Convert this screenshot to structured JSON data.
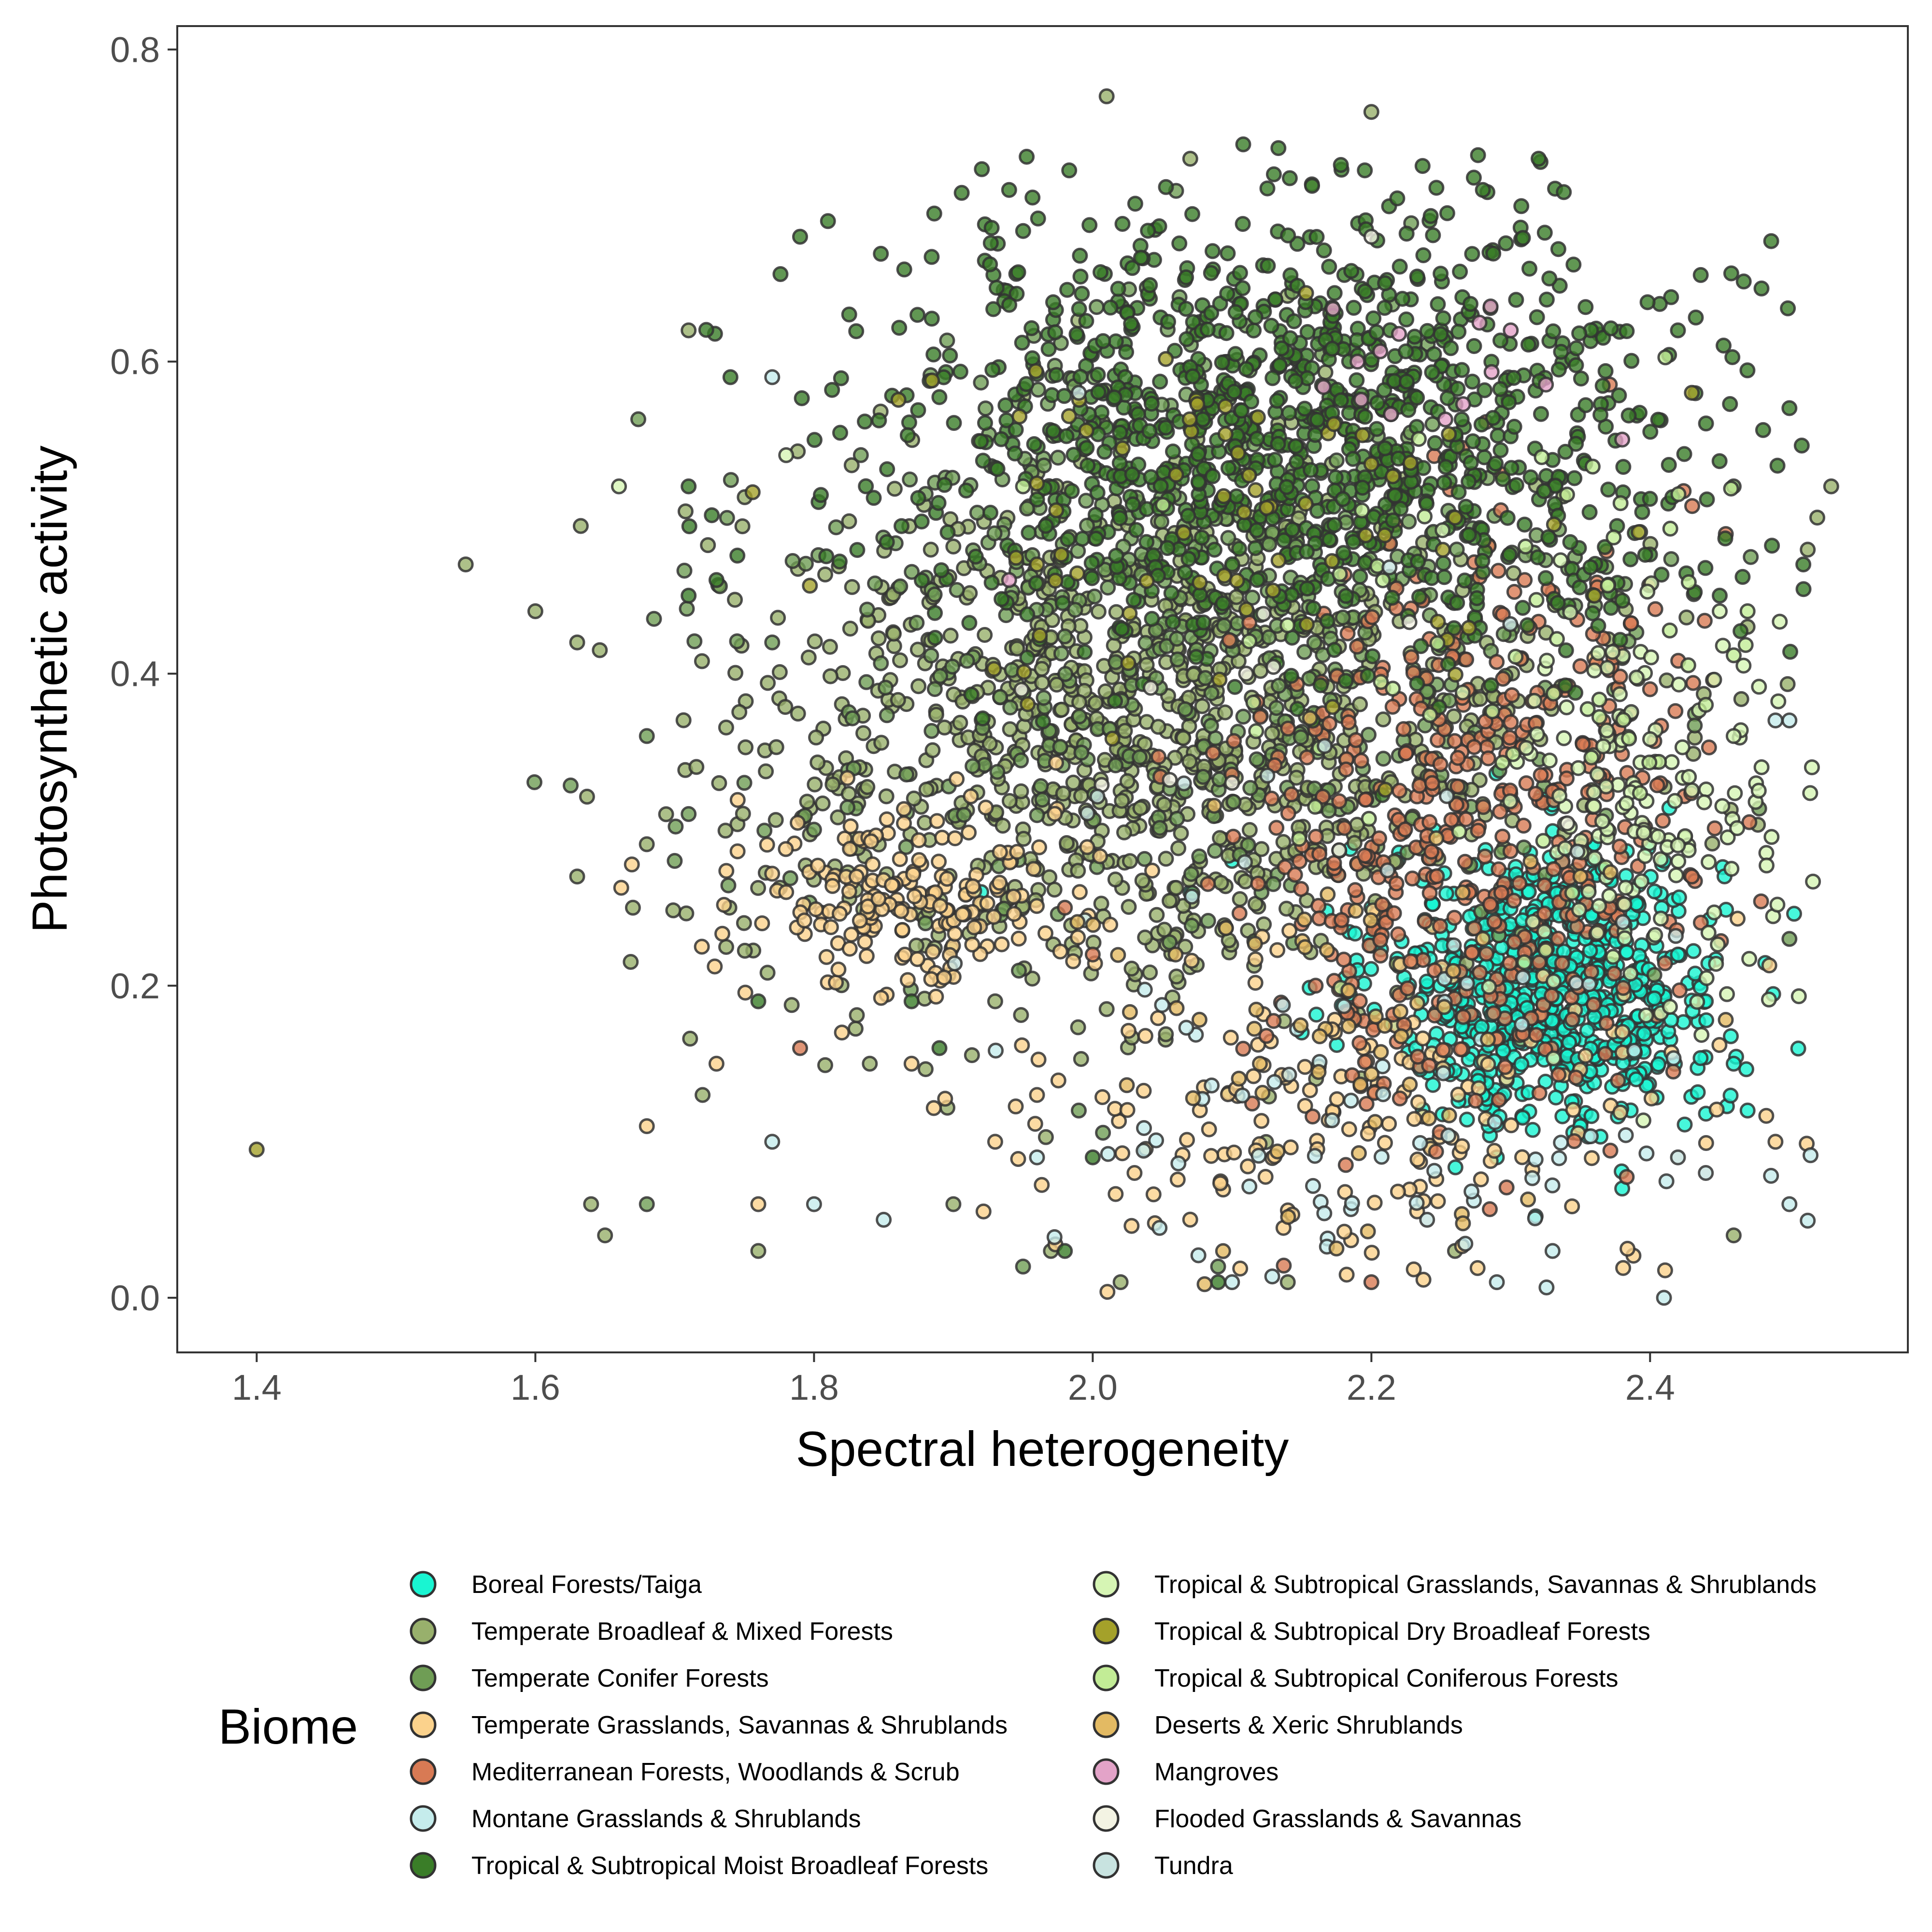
{
  "chart_data": {
    "type": "scatter",
    "title": "",
    "xlabel": "Spectral heterogeneity",
    "ylabel": "Photosynthetic activity",
    "xlim": [
      1.343,
      2.585
    ],
    "ylim": [
      -0.035,
      0.815
    ],
    "x_ticks": [
      {
        "value": 1.4,
        "label": "1.4"
      },
      {
        "value": 1.6,
        "label": "1.6"
      },
      {
        "value": 1.8,
        "label": "1.8"
      },
      {
        "value": 2.0,
        "label": "2.0"
      },
      {
        "value": 2.2,
        "label": "2.2"
      },
      {
        "value": 2.4,
        "label": "2.4"
      }
    ],
    "y_ticks": [
      {
        "value": 0.0,
        "label": "0.0"
      },
      {
        "value": 0.2,
        "label": "0.2"
      },
      {
        "value": 0.4,
        "label": "0.4"
      },
      {
        "value": 0.6,
        "label": "0.6"
      },
      {
        "value": 0.8,
        "label": "0.8"
      }
    ],
    "grid": false,
    "legend": {
      "title": "Biome",
      "position": "bottom",
      "columns": 2
    },
    "point_style": {
      "stroke": "#333333",
      "opacity": 0.8
    },
    "series": [
      {
        "name": "Boreal Forests/Taiga",
        "color": "#19f5d2",
        "centroids": [
          {
            "x": 2.33,
            "y": 0.2,
            "sx": 0.06,
            "sy": 0.045
          }
        ],
        "points": [
          [
            2.07,
            0.26
          ],
          [
            2.36,
            0.18
          ],
          [
            2.42,
            0.22
          ],
          [
            2.2,
            0.25
          ],
          [
            2.29,
            0.09
          ],
          [
            2.39,
            0.14
          ],
          [
            2.1,
            0.28
          ],
          [
            2.46,
            0.15
          ],
          [
            2.32,
            0.24
          ],
          [
            2.15,
            0.17
          ],
          [
            2.47,
            0.12
          ],
          [
            2.38,
            0.07
          ],
          [
            2.41,
            0.28
          ],
          [
            1.92,
            0.26
          ],
          [
            2.25,
            0.21
          ],
          [
            2.44,
            0.19
          ],
          [
            2.28,
            0.13
          ],
          [
            2.33,
            0.27
          ],
          [
            2.19,
            0.21
          ],
          [
            2.35,
            0.11
          ]
        ]
      },
      {
        "name": "Temperate Broadleaf & Mixed Forests",
        "color": "#98b06c",
        "centroids": [
          {
            "x": 2.04,
            "y": 0.36,
            "sx": 0.15,
            "sy": 0.085
          }
        ],
        "points": [
          [
            1.55,
            0.47
          ],
          [
            1.6,
            0.44
          ],
          [
            1.63,
            0.42
          ],
          [
            1.63,
            0.27
          ],
          [
            1.64,
            0.06
          ],
          [
            1.65,
            0.04
          ],
          [
            1.67,
            0.25
          ],
          [
            1.71,
            0.62
          ],
          [
            1.72,
            0.13
          ],
          [
            1.76,
            0.03
          ],
          [
            2.01,
            0.77
          ],
          [
            2.2,
            0.76
          ],
          [
            2.07,
            0.73
          ],
          [
            2.53,
            0.52
          ],
          [
            2.52,
            0.5
          ],
          [
            2.46,
            0.04
          ],
          [
            1.97,
            0.03
          ],
          [
            2.02,
            0.01
          ],
          [
            1.84,
            0.15
          ],
          [
            1.9,
            0.06
          ],
          [
            2.14,
            0.01
          ],
          [
            2.26,
            0.03
          ],
          [
            1.93,
            0.19
          ],
          [
            2.47,
            0.43
          ]
        ]
      },
      {
        "name": "Temperate Conifer Forests",
        "color": "#6f9d55",
        "centroids": [
          {
            "x": 2.08,
            "y": 0.43,
            "sx": 0.15,
            "sy": 0.1
          }
        ],
        "points": [
          [
            1.68,
            0.36
          ],
          [
            1.7,
            0.28
          ],
          [
            1.71,
            0.31
          ],
          [
            1.75,
            0.33
          ],
          [
            1.77,
            0.42
          ],
          [
            1.68,
            0.06
          ],
          [
            1.95,
            0.02
          ],
          [
            2.5,
            0.23
          ],
          [
            2.46,
            0.52
          ],
          [
            2.38,
            0.41
          ],
          [
            1.8,
            0.3
          ],
          [
            1.88,
            0.24
          ],
          [
            1.99,
            0.12
          ],
          [
            2.09,
            0.02
          ]
        ]
      },
      {
        "name": "Temperate Grasslands, Savannas & Shrublands",
        "color": "#fbd28c",
        "centroids": [
          {
            "x": 2.2,
            "y": 0.12,
            "sx": 0.12,
            "sy": 0.06
          },
          {
            "x": 1.86,
            "y": 0.26,
            "sx": 0.06,
            "sy": 0.03
          }
        ],
        "points": [
          [
            1.73,
            0.15
          ],
          [
            1.76,
            0.06
          ],
          [
            1.78,
            0.26
          ],
          [
            1.82,
            0.17
          ],
          [
            1.87,
            0.15
          ],
          [
            1.93,
            0.1
          ],
          [
            1.96,
            0.13
          ],
          [
            2.03,
            0.08
          ],
          [
            2.49,
            0.1
          ],
          [
            1.68,
            0.11
          ],
          [
            2.36,
            0.41
          ]
        ]
      },
      {
        "name": "Mediterranean Forests, Woodlands & Scrub",
        "color": "#d87a54",
        "centroids": [
          {
            "x": 2.27,
            "y": 0.3,
            "sx": 0.08,
            "sy": 0.095
          }
        ],
        "points": [
          [
            1.79,
            0.16
          ],
          [
            2.0,
            0.22
          ],
          [
            2.2,
            0.01
          ],
          [
            2.43,
            0.27
          ],
          [
            2.4,
            0.39
          ],
          [
            1.98,
            0.25
          ],
          [
            2.31,
            0.46
          ],
          [
            2.16,
            0.2
          ]
        ]
      },
      {
        "name": "Montane Grasslands & Shrublands",
        "color": "#c5ecec",
        "centroids": [
          {
            "x": 2.23,
            "y": 0.1,
            "sx": 0.12,
            "sy": 0.07
          }
        ],
        "points": [
          [
            1.77,
            0.1
          ],
          [
            1.8,
            0.06
          ],
          [
            1.85,
            0.05
          ],
          [
            1.77,
            0.59
          ],
          [
            2.41,
            0.0
          ],
          [
            2.29,
            0.01
          ],
          [
            2.33,
            0.03
          ],
          [
            2.5,
            0.06
          ],
          [
            2.5,
            0.37
          ],
          [
            2.49,
            0.37
          ],
          [
            2.1,
            0.01
          ],
          [
            1.96,
            0.09
          ]
        ]
      },
      {
        "name": "Tropical & Subtropical Moist Broadleaf Forests",
        "color": "#3a7d28",
        "centroids": [
          {
            "x": 2.15,
            "y": 0.56,
            "sx": 0.15,
            "sy": 0.07
          }
        ],
        "points": [
          [
            1.71,
            0.52
          ],
          [
            1.71,
            0.45
          ],
          [
            1.73,
            0.46
          ],
          [
            1.74,
            0.59
          ],
          [
            1.79,
            0.68
          ],
          [
            1.81,
            0.69
          ],
          [
            1.87,
            0.19
          ],
          [
            1.76,
            0.19
          ],
          [
            1.89,
            0.16
          ],
          [
            2.32,
            0.73
          ],
          [
            2.42,
            0.62
          ],
          [
            2.51,
            0.47
          ],
          [
            2.45,
            0.45
          ],
          [
            2.0,
            0.09
          ],
          [
            2.09,
            0.01
          ],
          [
            1.98,
            0.03
          ],
          [
            1.94,
            0.71
          ],
          [
            2.13,
            0.72
          ],
          [
            2.28,
            0.71
          ]
        ]
      },
      {
        "name": "Tropical & Subtropical Grasslands, Savannas & Shrublands",
        "color": "#d6f5b4",
        "centroids": [
          {
            "x": 2.4,
            "y": 0.32,
            "sx": 0.05,
            "sy": 0.07
          }
        ],
        "points": [
          [
            1.66,
            0.52
          ],
          [
            1.78,
            0.54
          ],
          [
            2.46,
            0.36
          ],
          [
            2.48,
            0.34
          ],
          [
            2.42,
            0.29
          ],
          [
            2.45,
            0.44
          ]
        ]
      },
      {
        "name": "Tropical & Subtropical Dry Broadleaf Forests",
        "color": "#a4a12a",
        "centroids": [
          {
            "x": 2.1,
            "y": 0.47,
            "sx": 0.12,
            "sy": 0.07
          }
        ],
        "points": [
          [
            1.4,
            0.095
          ],
          [
            2.43,
            0.58
          ],
          [
            2.36,
            0.45
          ],
          [
            1.96,
            0.47
          ],
          [
            2.26,
            0.5
          ]
        ]
      },
      {
        "name": "Tropical & Subtropical Coniferous Forests",
        "color": "#c2ec96",
        "centroids": [
          {
            "x": 2.3,
            "y": 0.4,
            "sx": 0.1,
            "sy": 0.1
          }
        ],
        "points": [
          [
            2.47,
            0.44
          ],
          [
            2.44,
            0.38
          ],
          [
            1.95,
            0.52
          ]
        ]
      },
      {
        "name": "Deserts & Xeric Shrublands",
        "color": "#e3ba63",
        "centroids": [
          {
            "x": 2.17,
            "y": 0.17,
            "sx": 0.1,
            "sy": 0.07
          }
        ],
        "points": [
          [
            2.28,
            0.23
          ],
          [
            2.12,
            0.15
          ],
          [
            2.35,
            0.27
          ]
        ]
      },
      {
        "name": "Mangroves",
        "color": "#e3a3c8",
        "centroids": [
          {
            "x": 2.26,
            "y": 0.58,
            "sx": 0.07,
            "sy": 0.04
          }
        ],
        "points": [
          [
            2.3,
            0.62
          ],
          [
            2.19,
            0.6
          ],
          [
            2.38,
            0.55
          ],
          [
            1.94,
            0.46
          ]
        ]
      },
      {
        "name": "Flooded Grasslands & Savannas",
        "color": "#f3f3e3",
        "centroids": [
          {
            "x": 2.15,
            "y": 0.4,
            "sx": 0.12,
            "sy": 0.08
          }
        ],
        "points": [
          [
            2.2,
            0.68
          ],
          [
            2.1,
            0.33
          ]
        ]
      },
      {
        "name": "Tundra",
        "color": "#c8e3e0",
        "centroids": [
          {
            "x": 2.2,
            "y": 0.3,
            "sx": 0.12,
            "sy": 0.1
          }
        ],
        "points": [
          [
            2.42,
            0.09
          ],
          [
            2.44,
            0.08
          ],
          [
            2.24,
            0.05
          ],
          [
            1.99,
            0.58
          ]
        ]
      }
    ],
    "generated_counts": [
      700,
      1050,
      550,
      380,
      480,
      70,
      1150,
      160,
      70,
      60,
      60,
      12,
      10,
      18
    ]
  }
}
